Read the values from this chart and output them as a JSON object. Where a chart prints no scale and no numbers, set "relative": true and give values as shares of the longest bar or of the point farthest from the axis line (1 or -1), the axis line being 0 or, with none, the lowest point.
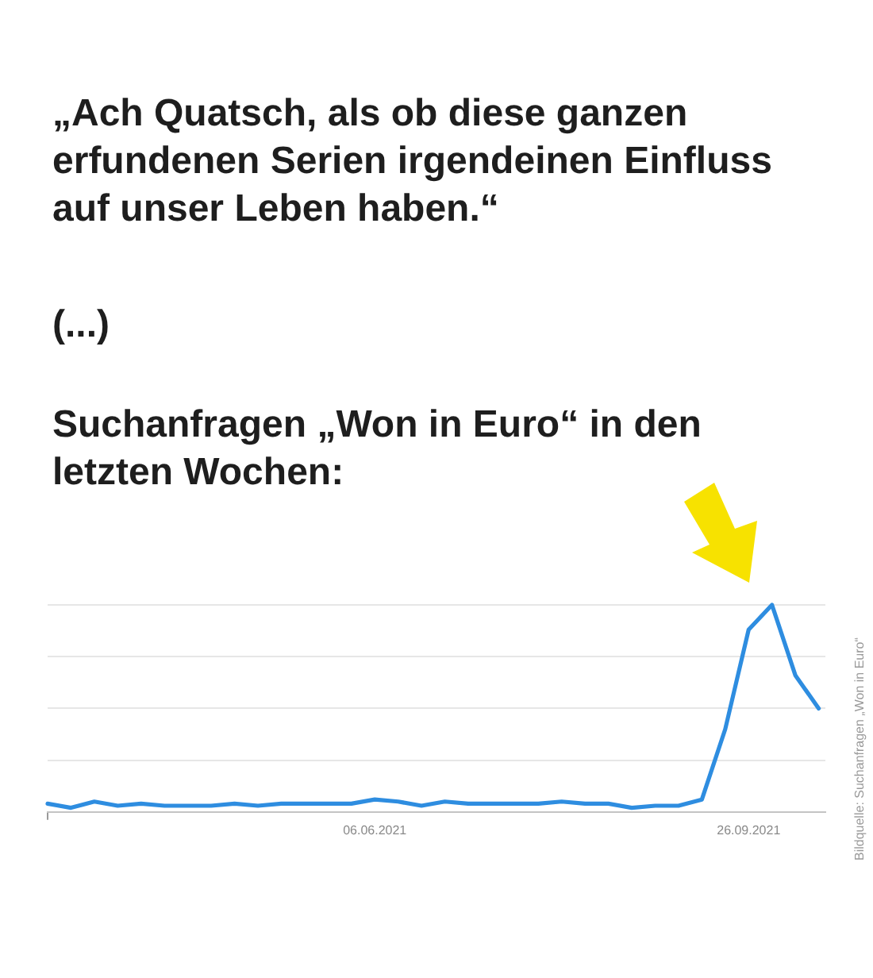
{
  "chart_data": {
    "type": "line",
    "title": "Suchanfragen „Won in Euro“ in den letzten Wochen:",
    "annotations": [
      "„Ach Quatsch, als ob diese ganzen erfundenen Serien irgendeinen Einfluss auf unser Leben haben.“",
      "(...)",
      "Bildquelle: Suchanfragen „Won in Euro“"
    ],
    "x": [
      "2021-02-28",
      "2021-03-07",
      "2021-03-14",
      "2021-03-21",
      "2021-03-28",
      "2021-04-04",
      "2021-04-11",
      "2021-04-18",
      "2021-04-25",
      "2021-05-02",
      "2021-05-09",
      "2021-05-16",
      "2021-05-23",
      "2021-05-30",
      "2021-06-06",
      "2021-06-13",
      "2021-06-20",
      "2021-06-27",
      "2021-07-04",
      "2021-07-11",
      "2021-07-18",
      "2021-07-25",
      "2021-08-01",
      "2021-08-08",
      "2021-08-15",
      "2021-08-22",
      "2021-08-29",
      "2021-09-05",
      "2021-09-12",
      "2021-09-19",
      "2021-09-26",
      "2021-10-03",
      "2021-10-10",
      "2021-10-17"
    ],
    "series": [
      {
        "color": "#2e8de0",
        "values": [
          0.04,
          0.02,
          0.05,
          0.03,
          0.04,
          0.03,
          0.03,
          0.03,
          0.04,
          0.03,
          0.04,
          0.04,
          0.04,
          0.04,
          0.06,
          0.05,
          0.03,
          0.05,
          0.04,
          0.04,
          0.04,
          0.04,
          0.05,
          0.04,
          0.04,
          0.02,
          0.03,
          0.03,
          0.06,
          0.4,
          0.88,
          1,
          0.66,
          0.5
        ]
      }
    ],
    "relative": true,
    "xlim": [
      "2021-02-28",
      "2021-10-19"
    ],
    "xticks": [
      {
        "value": "2021-02-28",
        "label": null
      },
      {
        "value": "2021-06-06",
        "label": "06.06.2021"
      },
      {
        "value": "2021-09-26",
        "label": "26.09.2021"
      }
    ],
    "grid": "y"
  }
}
